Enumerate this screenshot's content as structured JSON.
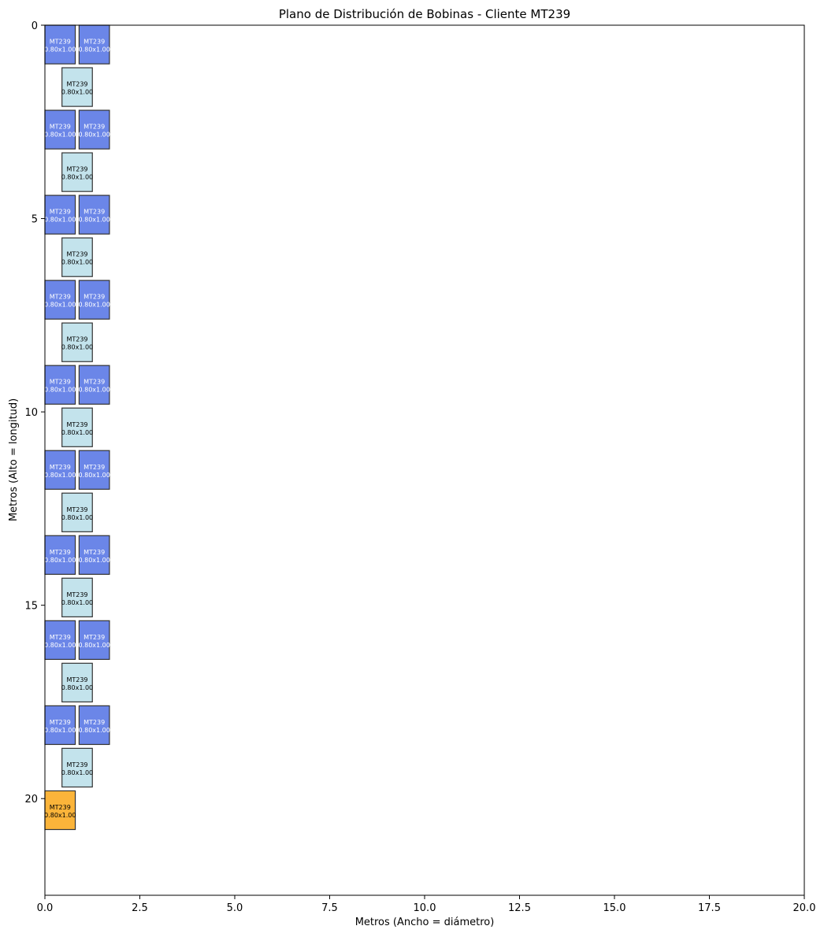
{
  "chart_data": {
    "type": "rectangles",
    "title": "Plano de Distribución de Bobinas - Cliente MT239",
    "xlabel": "Metros (Ancho = diámetro)",
    "ylabel": "Metros (Alto = longitud)",
    "xlim": [
      0,
      20
    ],
    "ylim": [
      22.5,
      0
    ],
    "xticks": [
      "0.0",
      "2.5",
      "5.0",
      "7.5",
      "10.0",
      "12.5",
      "15.0",
      "17.5",
      "20.0"
    ],
    "yticks": [
      "0",
      "5",
      "10",
      "15",
      "20"
    ],
    "colors": {
      "base": "#6b86e8",
      "stacked": "#c3e3ec",
      "single": "#fbb43a",
      "edge": "#333333"
    },
    "coils": [
      {
        "x": 0.0,
        "y": 0.0,
        "w": 0.8,
        "h": 1.0,
        "layer": "base",
        "client": "MT239",
        "size": "0.80x1.00"
      },
      {
        "x": 0.9,
        "y": 0.0,
        "w": 0.8,
        "h": 1.0,
        "layer": "base",
        "client": "MT239",
        "size": "0.80x1.00"
      },
      {
        "x": 0.45,
        "y": 1.1,
        "w": 0.8,
        "h": 1.0,
        "layer": "stacked",
        "client": "MT239",
        "size": "0.80x1.00"
      },
      {
        "x": 0.0,
        "y": 2.2,
        "w": 0.8,
        "h": 1.0,
        "layer": "base",
        "client": "MT239",
        "size": "0.80x1.00"
      },
      {
        "x": 0.9,
        "y": 2.2,
        "w": 0.8,
        "h": 1.0,
        "layer": "base",
        "client": "MT239",
        "size": "0.80x1.00"
      },
      {
        "x": 0.45,
        "y": 3.3,
        "w": 0.8,
        "h": 1.0,
        "layer": "stacked",
        "client": "MT239",
        "size": "0.80x1.00"
      },
      {
        "x": 0.0,
        "y": 4.4,
        "w": 0.8,
        "h": 1.0,
        "layer": "base",
        "client": "MT239",
        "size": "0.80x1.00"
      },
      {
        "x": 0.9,
        "y": 4.4,
        "w": 0.8,
        "h": 1.0,
        "layer": "base",
        "client": "MT239",
        "size": "0.80x1.00"
      },
      {
        "x": 0.45,
        "y": 5.5,
        "w": 0.8,
        "h": 1.0,
        "layer": "stacked",
        "client": "MT239",
        "size": "0.80x1.00"
      },
      {
        "x": 0.0,
        "y": 6.6,
        "w": 0.8,
        "h": 1.0,
        "layer": "base",
        "client": "MT239",
        "size": "0.80x1.00"
      },
      {
        "x": 0.9,
        "y": 6.6,
        "w": 0.8,
        "h": 1.0,
        "layer": "base",
        "client": "MT239",
        "size": "0.80x1.00"
      },
      {
        "x": 0.45,
        "y": 7.7,
        "w": 0.8,
        "h": 1.0,
        "layer": "stacked",
        "client": "MT239",
        "size": "0.80x1.00"
      },
      {
        "x": 0.0,
        "y": 8.8,
        "w": 0.8,
        "h": 1.0,
        "layer": "base",
        "client": "MT239",
        "size": "0.80x1.00"
      },
      {
        "x": 0.9,
        "y": 8.8,
        "w": 0.8,
        "h": 1.0,
        "layer": "base",
        "client": "MT239",
        "size": "0.80x1.00"
      },
      {
        "x": 0.45,
        "y": 9.9,
        "w": 0.8,
        "h": 1.0,
        "layer": "stacked",
        "client": "MT239",
        "size": "0.80x1.00"
      },
      {
        "x": 0.0,
        "y": 11.0,
        "w": 0.8,
        "h": 1.0,
        "layer": "base",
        "client": "MT239",
        "size": "0.80x1.00"
      },
      {
        "x": 0.9,
        "y": 11.0,
        "w": 0.8,
        "h": 1.0,
        "layer": "base",
        "client": "MT239",
        "size": "0.80x1.00"
      },
      {
        "x": 0.45,
        "y": 12.1,
        "w": 0.8,
        "h": 1.0,
        "layer": "stacked",
        "client": "MT239",
        "size": "0.80x1.00"
      },
      {
        "x": 0.0,
        "y": 13.2,
        "w": 0.8,
        "h": 1.0,
        "layer": "base",
        "client": "MT239",
        "size": "0.80x1.00"
      },
      {
        "x": 0.9,
        "y": 13.2,
        "w": 0.8,
        "h": 1.0,
        "layer": "base",
        "client": "MT239",
        "size": "0.80x1.00"
      },
      {
        "x": 0.45,
        "y": 14.3,
        "w": 0.8,
        "h": 1.0,
        "layer": "stacked",
        "client": "MT239",
        "size": "0.80x1.00"
      },
      {
        "x": 0.0,
        "y": 15.4,
        "w": 0.8,
        "h": 1.0,
        "layer": "base",
        "client": "MT239",
        "size": "0.80x1.00"
      },
      {
        "x": 0.9,
        "y": 15.4,
        "w": 0.8,
        "h": 1.0,
        "layer": "base",
        "client": "MT239",
        "size": "0.80x1.00"
      },
      {
        "x": 0.45,
        "y": 16.5,
        "w": 0.8,
        "h": 1.0,
        "layer": "stacked",
        "client": "MT239",
        "size": "0.80x1.00"
      },
      {
        "x": 0.0,
        "y": 17.6,
        "w": 0.8,
        "h": 1.0,
        "layer": "base",
        "client": "MT239",
        "size": "0.80x1.00"
      },
      {
        "x": 0.9,
        "y": 17.6,
        "w": 0.8,
        "h": 1.0,
        "layer": "base",
        "client": "MT239",
        "size": "0.80x1.00"
      },
      {
        "x": 0.45,
        "y": 18.7,
        "w": 0.8,
        "h": 1.0,
        "layer": "stacked",
        "client": "MT239",
        "size": "0.80x1.00"
      },
      {
        "x": 0.0,
        "y": 19.8,
        "w": 0.8,
        "h": 1.0,
        "layer": "single",
        "client": "MT239",
        "size": "0.80x1.00"
      }
    ]
  }
}
